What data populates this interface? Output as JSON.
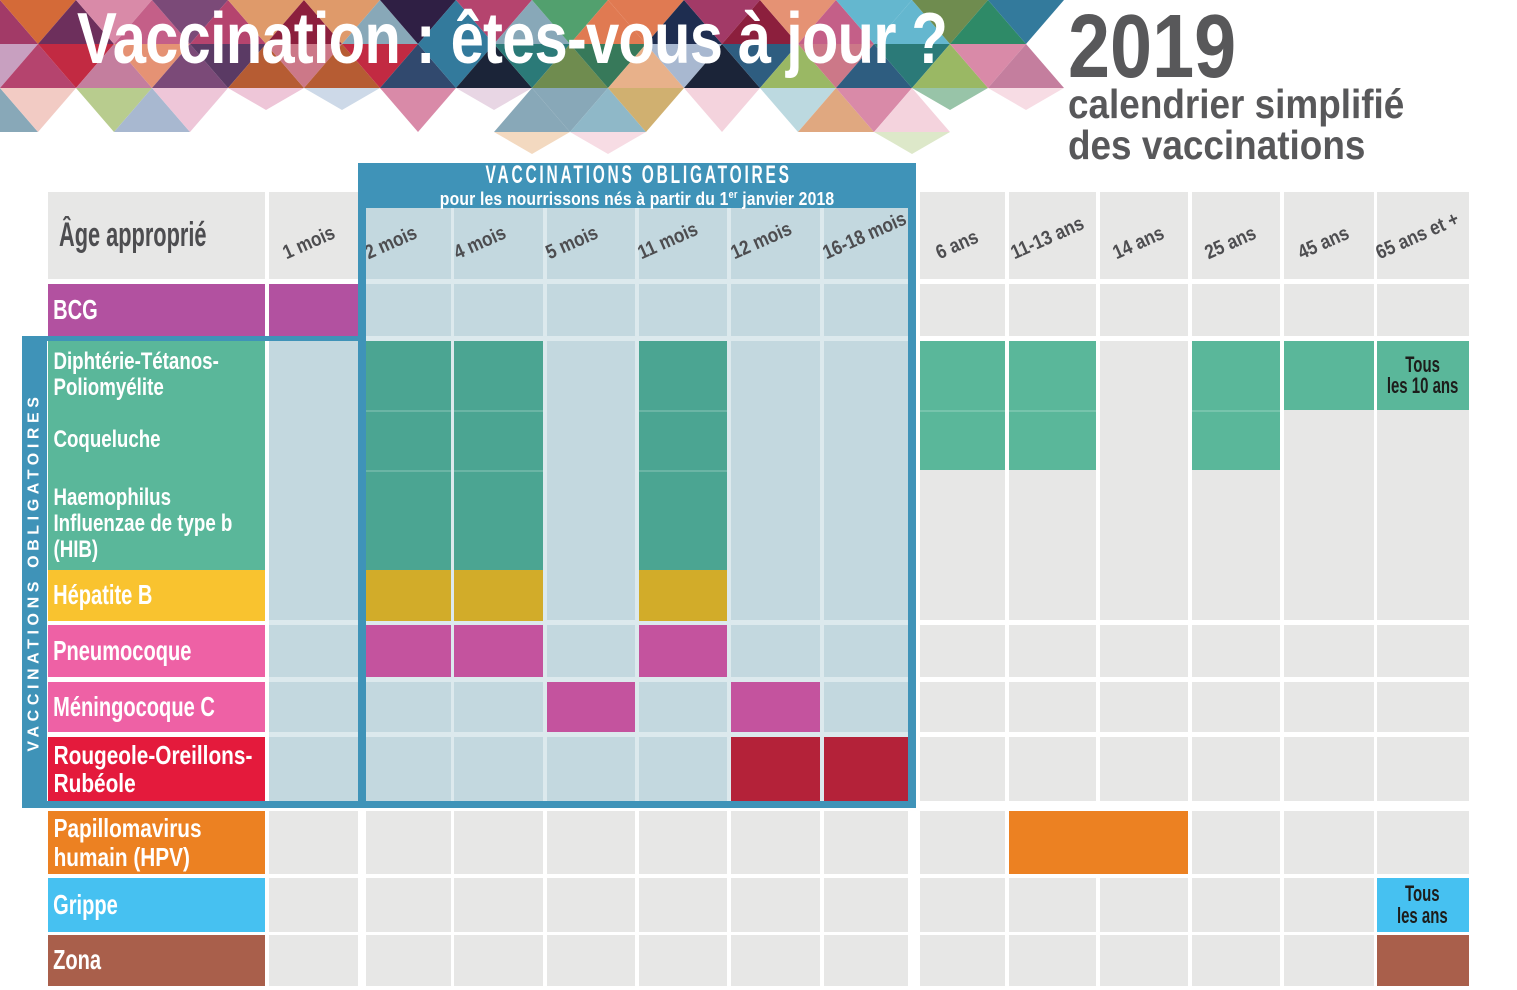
{
  "title": "Vaccination : êtes-vous à jour ?",
  "year": "2019",
  "subtitle": "calendrier simplifié\ndes vaccinations",
  "obligatory_box": {
    "line1": "VACCINATIONS OBLIGATOIRES",
    "line2_prefix": "pour les nourrissons nés à partir du 1",
    "line2_sup": "er",
    "line2_suffix": " janvier 2018"
  },
  "side_band_label": "VACCINATIONS OBLIGATOIRES",
  "age_header": "Âge approprié",
  "columns": [
    "1 mois",
    "2 mois",
    "4 mois",
    "5 mois",
    "11 mois",
    "12 mois",
    "16-18 mois",
    "6 ans",
    "11-13 ans",
    "14 ans",
    "25 ans",
    "45 ans",
    "65 ans et +"
  ],
  "rows": [
    {
      "id": "bcg",
      "label": "BCG",
      "color": "#b251a0"
    },
    {
      "id": "dtp",
      "label": "Diphtérie-Tétanos-\nPoliomyélite",
      "color": "#5ab79a"
    },
    {
      "id": "coq",
      "label": "Coqueluche",
      "color": "#5ab79a"
    },
    {
      "id": "hib",
      "label": "Haemophilus\nInfluenzae de type b\n(HIB)",
      "color": "#5ab79a"
    },
    {
      "id": "hep",
      "label": "Hépatite B",
      "color": "#f9c32f"
    },
    {
      "id": "pne",
      "label": "Pneumocoque",
      "color": "#ee61a5"
    },
    {
      "id": "men",
      "label": "Méningocoque C",
      "color": "#ee61a5"
    },
    {
      "id": "ror",
      "label": "Rougeole-Oreillons-\nRubéole",
      "color": "#e41a3c"
    },
    {
      "id": "hpv",
      "label": "Papillomavirus\nhumain (HPV)",
      "color": "#ec8122"
    },
    {
      "id": "gri",
      "label": "Grippe",
      "color": "#46c1f1"
    },
    {
      "id": "zon",
      "label": "Zona",
      "color": "#a95f4b"
    }
  ],
  "notes": {
    "dtp_65": "Tous\nles 10 ans",
    "gri_65": "Tous\nles ans"
  },
  "colors": {
    "frame_blue": "#3f93b8",
    "tint_cell": "#c3d8df",
    "tint_base": "#dce9ed",
    "gray_cell": "#e7e7e6",
    "header_text": "#4d4d50",
    "title_text": "#ffffff",
    "year_text": "#58585a",
    "note_text": "#1d1d1b",
    "mark_green_tinted": "#4ba592",
    "mark_yellow_tinted": "#d2ac29",
    "mark_pink_tinted": "#c4539e",
    "mark_red_tinted": "#b42239",
    "mark_green": "#5ab79a",
    "mark_magenta": "#b251a0",
    "mark_orange": "#ec8122",
    "mark_blue": "#46c1f1",
    "mark_brown": "#a95f4b"
  },
  "chart_data": {
    "type": "table",
    "title": "Vaccination : êtes-vous à jour ?",
    "subtitle": "2019 calendrier simplifié des vaccinations",
    "columns": [
      "1 mois",
      "2 mois",
      "4 mois",
      "5 mois",
      "11 mois",
      "12 mois",
      "16-18 mois",
      "6 ans",
      "11-13 ans",
      "14 ans",
      "25 ans",
      "45 ans",
      "65 ans et +"
    ],
    "rows": [
      {
        "vaccine": "BCG",
        "ages": [
          "1 mois"
        ]
      },
      {
        "vaccine": "Diphtérie-Tétanos-Poliomyélite",
        "ages": [
          "2 mois",
          "4 mois",
          "11 mois",
          "6 ans",
          "11-13 ans",
          "25 ans",
          "45 ans",
          "65 ans et +"
        ],
        "note_65_ans": "Tous les 10 ans"
      },
      {
        "vaccine": "Coqueluche",
        "ages": [
          "2 mois",
          "4 mois",
          "11 mois",
          "6 ans",
          "11-13 ans",
          "25 ans"
        ]
      },
      {
        "vaccine": "Haemophilus Influenzae de type b (HIB)",
        "ages": [
          "2 mois",
          "4 mois",
          "11 mois"
        ]
      },
      {
        "vaccine": "Hépatite B",
        "ages": [
          "2 mois",
          "4 mois",
          "11 mois"
        ]
      },
      {
        "vaccine": "Pneumocoque",
        "ages": [
          "2 mois",
          "4 mois",
          "11 mois"
        ]
      },
      {
        "vaccine": "Méningocoque C",
        "ages": [
          "5 mois",
          "12 mois"
        ]
      },
      {
        "vaccine": "Rougeole-Oreillons-Rubéole",
        "ages": [
          "12 mois",
          "16-18 mois"
        ]
      },
      {
        "vaccine": "Papillomavirus humain (HPV)",
        "ages": [
          "11-13 ans",
          "14 ans"
        ]
      },
      {
        "vaccine": "Grippe",
        "ages": [
          "65 ans et +"
        ],
        "note_65_ans": "Tous les ans"
      },
      {
        "vaccine": "Zona",
        "ages": [
          "65 ans et +"
        ]
      }
    ],
    "obligatory_frame": {
      "label": "VACCINATIONS OBLIGATOIRES",
      "sub_label": "pour les nourrissons nés à partir du 1er janvier 2018",
      "column_span": [
        "2 mois",
        "16-18 mois"
      ],
      "row_span": [
        "Diphtérie-Tétanos-Poliomyélite",
        "Rougeole-Oreillons-Rubéole"
      ]
    }
  }
}
